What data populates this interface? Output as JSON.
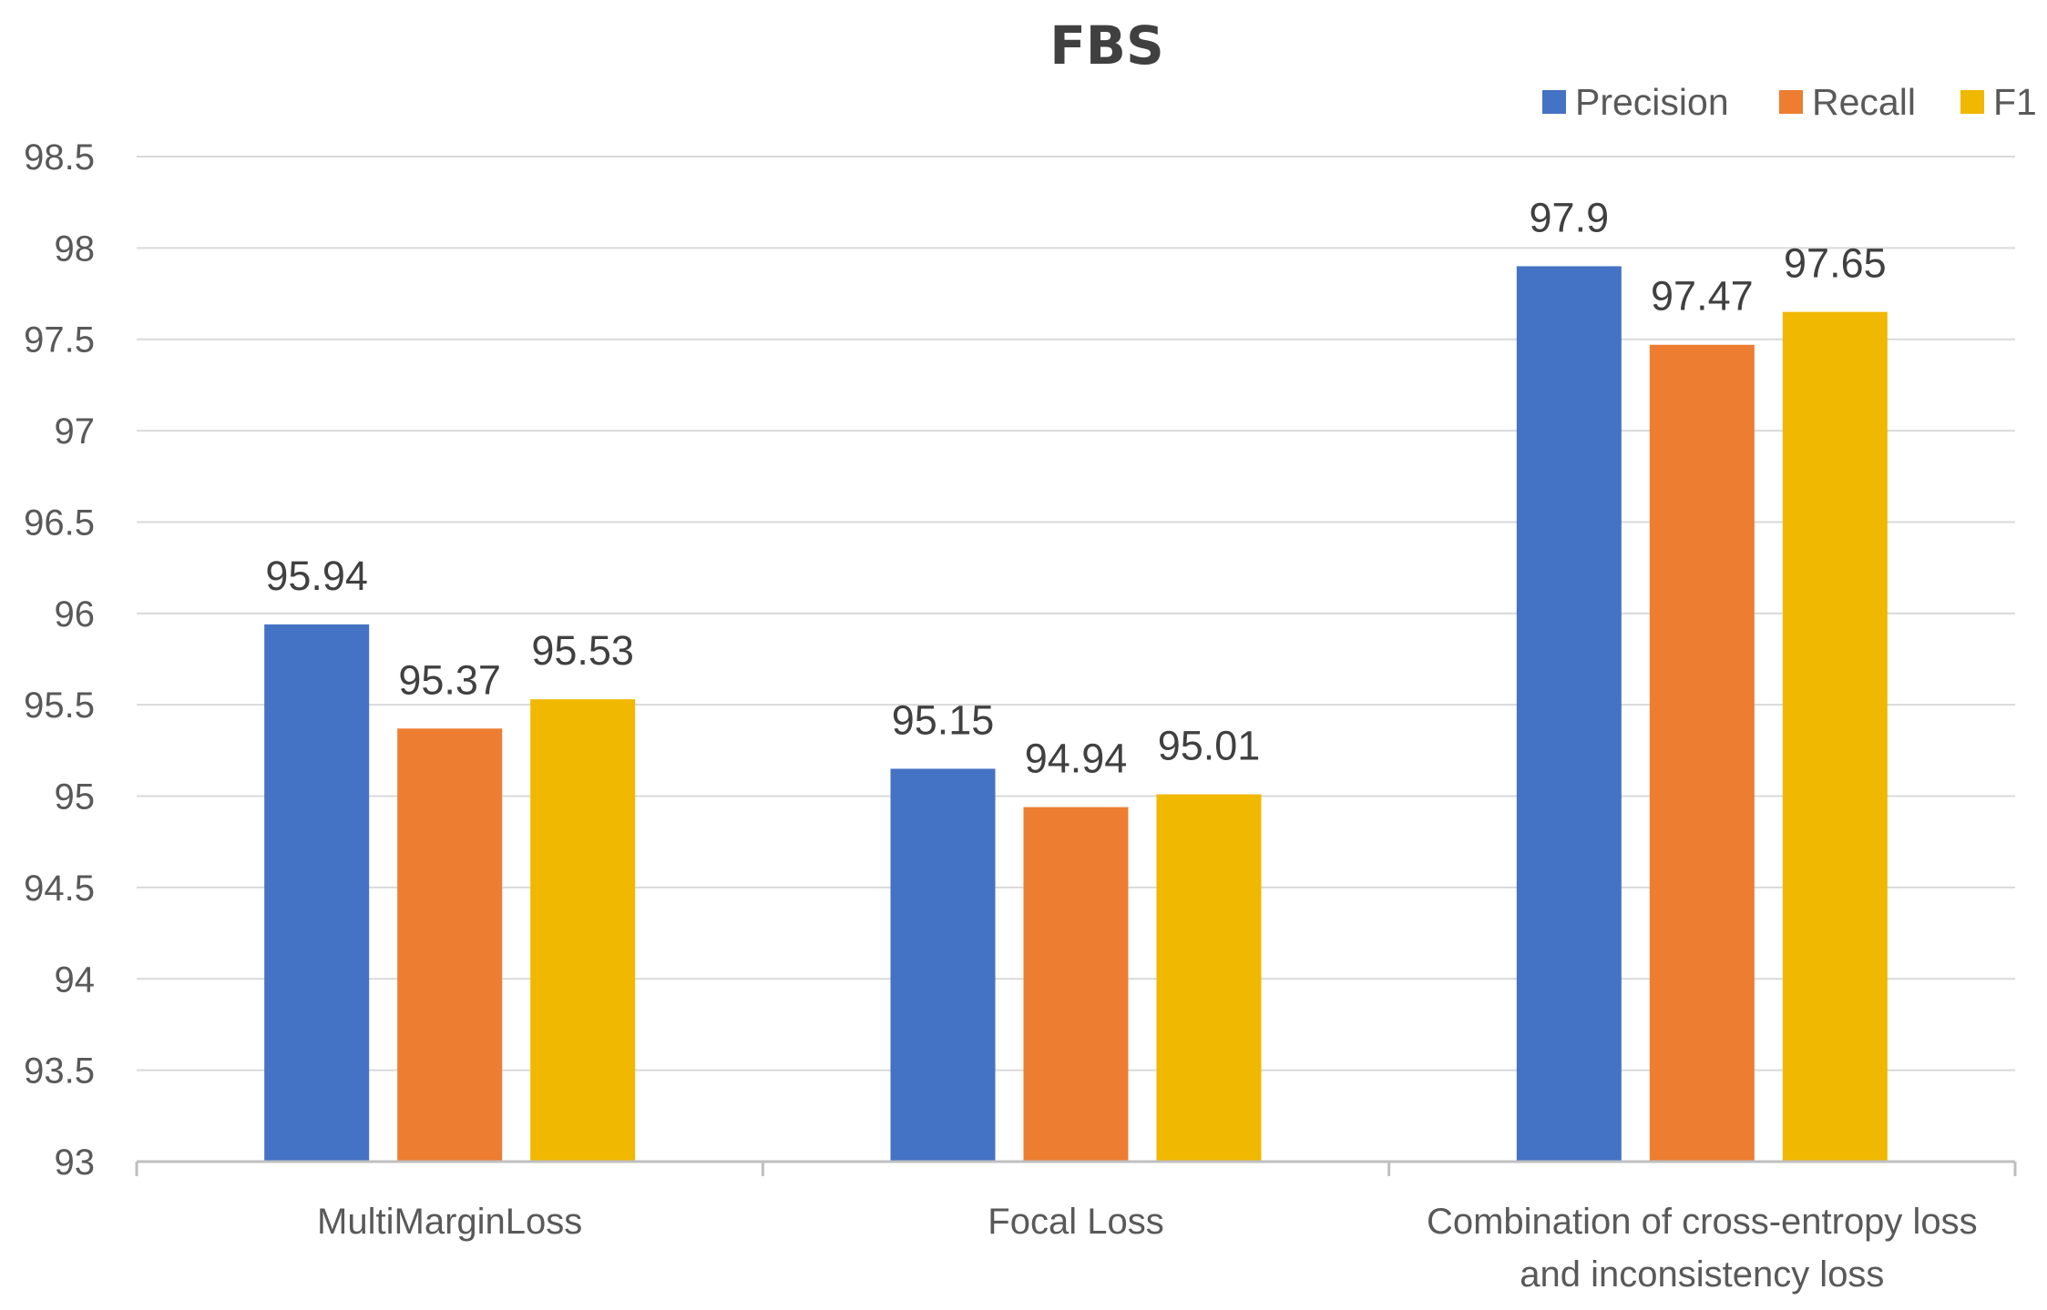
{
  "chart_data": {
    "type": "bar",
    "title": "FBS",
    "categories": [
      [
        "MultiMarginLoss"
      ],
      [
        "Focal Loss"
      ],
      [
        "Combination of cross-entropy loss",
        "and inconsistency loss"
      ]
    ],
    "series": [
      {
        "name": "Precision",
        "color": "#4472C4",
        "values": [
          95.94,
          95.15,
          97.9
        ]
      },
      {
        "name": "Recall",
        "color": "#ED7D31",
        "values": [
          95.37,
          94.94,
          97.47
        ]
      },
      {
        "name": "F1",
        "color": "#F0B800",
        "values": [
          95.53,
          95.01,
          97.65
        ]
      }
    ],
    "ylim": [
      93,
      98.5
    ],
    "yticks": [
      "93",
      "93.5",
      "94",
      "94.5",
      "95",
      "95.5",
      "96",
      "96.5",
      "97",
      "97.5",
      "98",
      "98.5"
    ],
    "xlabel": "",
    "ylabel": "",
    "grid": true,
    "legend_position": "top-right"
  }
}
